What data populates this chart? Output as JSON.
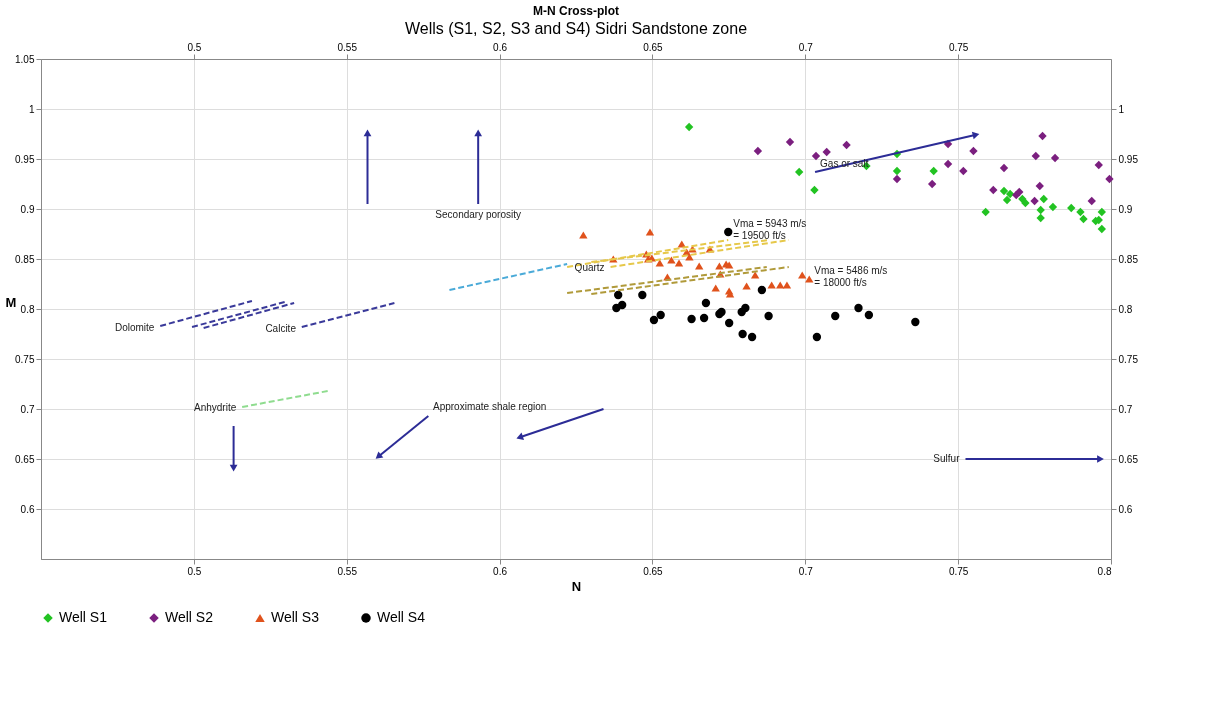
{
  "chart_data": {
    "type": "scatter",
    "title": "M-N Cross-plot",
    "subtitle": "Wells (S1, S2, S3 and S4) Sidri Sandstone zone",
    "xlabel": "N",
    "ylabel": "M",
    "xlim": [
      0.45,
      0.8
    ],
    "xticks": [
      0.5,
      0.55,
      0.6,
      0.65,
      0.7,
      0.75,
      0.8
    ],
    "x2lim": [
      0.45,
      0.8
    ],
    "x2ticks": [
      0.5,
      0.55,
      0.6,
      0.65,
      0.7,
      0.75
    ],
    "ylim": [
      0.55,
      1.05
    ],
    "yticks": [
      0.6,
      0.65,
      0.7,
      0.75,
      0.8,
      0.85,
      0.9,
      0.95,
      1,
      1.05
    ],
    "y2lim": [
      0.55,
      1.05
    ],
    "y2ticks": [
      0.6,
      0.65,
      0.7,
      0.75,
      0.8,
      0.85,
      0.9,
      0.95,
      1
    ],
    "grid": true,
    "legend": "bottom",
    "series": [
      {
        "name": "Well S1",
        "marker": "diamond",
        "color": "#22c322",
        "x": [
          0.662,
          0.698,
          0.703,
          0.72,
          0.73,
          0.73,
          0.742,
          0.759,
          0.765,
          0.766,
          0.767,
          0.771,
          0.772,
          0.777,
          0.777,
          0.778,
          0.781,
          0.787,
          0.79,
          0.791,
          0.795,
          0.796,
          0.797,
          0.797
        ],
        "values": [
          0.982,
          0.937,
          0.919,
          0.943,
          0.955,
          0.938,
          0.938,
          0.897,
          0.918,
          0.909,
          0.915,
          0.91,
          0.906,
          0.899,
          0.891,
          0.91,
          0.902,
          0.901,
          0.897,
          0.89,
          0.888,
          0.889,
          0.897,
          0.88
        ]
      },
      {
        "name": "Well S2",
        "marker": "diamond",
        "color": "#7b1f7f",
        "x": [
          0.6845,
          0.695,
          0.7035,
          0.707,
          0.7135,
          0.73,
          0.7415,
          0.7467,
          0.7467,
          0.7517,
          0.755,
          0.7615,
          0.765,
          0.769,
          0.77,
          0.775,
          0.7754,
          0.7767,
          0.7776,
          0.7817,
          0.7937,
          0.796,
          0.7995
        ],
        "values": [
          0.958,
          0.967,
          0.953,
          0.957,
          0.964,
          0.93,
          0.925,
          0.965,
          0.945,
          0.938,
          0.958,
          0.919,
          0.941,
          0.914,
          0.917,
          0.908,
          0.953,
          0.923,
          0.973,
          0.951,
          0.908,
          0.944,
          0.93
        ]
      },
      {
        "name": "Well S3",
        "marker": "triangle",
        "color": "#e0521c",
        "x": [
          0.6274,
          0.6492,
          0.6372,
          0.648,
          0.6486,
          0.6498,
          0.6524,
          0.6562,
          0.6587,
          0.6596,
          0.6612,
          0.6631,
          0.6621,
          0.6688,
          0.6653,
          0.6549,
          0.6719,
          0.6741,
          0.6751,
          0.6722,
          0.6707,
          0.6751,
          0.6754,
          0.6808,
          0.6836,
          0.689,
          0.6918,
          0.694,
          0.699,
          0.7013
        ],
        "values": [
          0.874,
          0.877,
          0.85,
          0.855,
          0.85,
          0.851,
          0.846,
          0.849,
          0.846,
          0.865,
          0.857,
          0.86,
          0.852,
          0.86,
          0.843,
          0.832,
          0.843,
          0.845,
          0.844,
          0.835,
          0.821,
          0.818,
          0.815,
          0.823,
          0.834,
          0.824,
          0.824,
          0.824,
          0.834,
          0.83
        ]
      },
      {
        "name": "Well S4",
        "marker": "circle",
        "color": "#000000",
        "x": [
          0.6748,
          0.6388,
          0.6467,
          0.6382,
          0.6401,
          0.6505,
          0.6527,
          0.6628,
          0.6669,
          0.6675,
          0.6719,
          0.6726,
          0.6751,
          0.6792,
          0.6804,
          0.6795,
          0.6826,
          0.6858,
          0.688,
          0.7038,
          0.7098,
          0.7174,
          0.7208,
          0.736
        ],
        "values": [
          0.877,
          0.814,
          0.814,
          0.801,
          0.804,
          0.789,
          0.794,
          0.79,
          0.791,
          0.806,
          0.795,
          0.797,
          0.786,
          0.797,
          0.801,
          0.775,
          0.772,
          0.819,
          0.793,
          0.772,
          0.793,
          0.801,
          0.794,
          0.787
        ]
      },
      {
        "type": "line",
        "name": "Dolomite",
        "line_style": "dashed",
        "color": "#3a3a9a",
        "x": [
          0.489,
          0.519
        ],
        "values": [
          0.783,
          0.808
        ]
      },
      {
        "type": "line",
        "line_style": "dashed",
        "color": "#3a3a9a",
        "x": [
          0.4994,
          0.5297
        ],
        "values": [
          0.782,
          0.807
        ]
      },
      {
        "type": "line",
        "line_style": "dashed",
        "color": "#3a3a9a",
        "x": [
          0.5032,
          0.5328
        ],
        "values": [
          0.781,
          0.806
        ]
      },
      {
        "type": "line",
        "name": "Calcite",
        "line_style": "dashed",
        "color": "#3a3a9a",
        "x": [
          0.5353,
          0.5656
        ],
        "values": [
          0.782,
          0.806
        ]
      },
      {
        "type": "line",
        "name": "Anhydrite",
        "line_style": "dashed",
        "color": "#8fdc8f",
        "x": [
          0.5158,
          0.5438
        ],
        "values": [
          0.702,
          0.718
        ]
      },
      {
        "type": "line",
        "line_style": "dashed",
        "color": "#4aaad8",
        "x": [
          0.5836,
          0.6221
        ],
        "values": [
          0.819,
          0.845
        ]
      },
      {
        "type": "line",
        "line_style": "dashed",
        "color": "#e6c84a",
        "x": [
          0.6221,
          0.6748
        ],
        "values": [
          0.842,
          0.869
        ]
      },
      {
        "type": "line",
        "line_style": "dashed",
        "color": "#e6c84a",
        "x": [
          0.63,
          0.6883
        ],
        "values": [
          0.847,
          0.869
        ]
      },
      {
        "type": "line",
        "name": "Quartz",
        "line_style": "dashed",
        "color": "#e6c84a",
        "x": [
          0.6363,
          0.6946
        ],
        "values": [
          0.842,
          0.869
        ]
      },
      {
        "type": "line",
        "line_style": "dashed",
        "color": "#b09a3a",
        "x": [
          0.6221,
          0.6874
        ],
        "values": [
          0.816,
          0.842
        ]
      },
      {
        "type": "line",
        "line_style": "dashed",
        "color": "#b09a3a",
        "x": [
          0.63,
          0.6946
        ],
        "values": [
          0.815,
          0.842
        ]
      },
      {
        "type": "line",
        "line_style": "solid",
        "color": "#2c2c96",
        "x": [
          0.5568,
          0.5568
        ],
        "values": [
          0.905,
          0.975
        ]
      },
      {
        "type": "line",
        "name": "Secondary porosity",
        "line_style": "solid",
        "color": "#2c2c96",
        "x": [
          0.593,
          0.593
        ],
        "values": [
          0.905,
          0.975
        ]
      },
      {
        "type": "line",
        "line_style": "solid",
        "color": "#2c2c96",
        "x": [
          0.7032,
          0.7555
        ],
        "values": [
          0.937,
          0.974
        ]
      },
      {
        "type": "line",
        "line_style": "solid",
        "color": "#2c2c96",
        "x": [
          0.513,
          0.513
        ],
        "values": [
          0.683,
          0.642
        ]
      },
      {
        "type": "line",
        "name": "Approximate shale region",
        "line_style": "solid",
        "color": "#2c2c96",
        "x": [
          0.5767,
          0.5606
        ],
        "values": [
          0.693,
          0.653
        ]
      },
      {
        "type": "line",
        "line_style": "solid",
        "color": "#2c2c96",
        "x": [
          0.634,
          0.6069
        ],
        "values": [
          0.7,
          0.672
        ]
      },
      {
        "type": "line",
        "name": "Sulfur",
        "line_style": "solid",
        "color": "#2c2c96",
        "x": [
          0.7524,
          0.7962
        ],
        "values": [
          0.65,
          0.65
        ]
      }
    ],
    "annotations": [
      {
        "text": "Vma = 5943 m/s\n= 19500 ft/s",
        "x": 0.6748,
        "y": 0.877
      },
      {
        "text": "Vma = 5486 m/s\n= 18000 ft/s",
        "x": 0.7013,
        "y": 0.83
      },
      {
        "text": "Gas or salt",
        "x": 0.7032,
        "y": 0.937
      }
    ]
  }
}
